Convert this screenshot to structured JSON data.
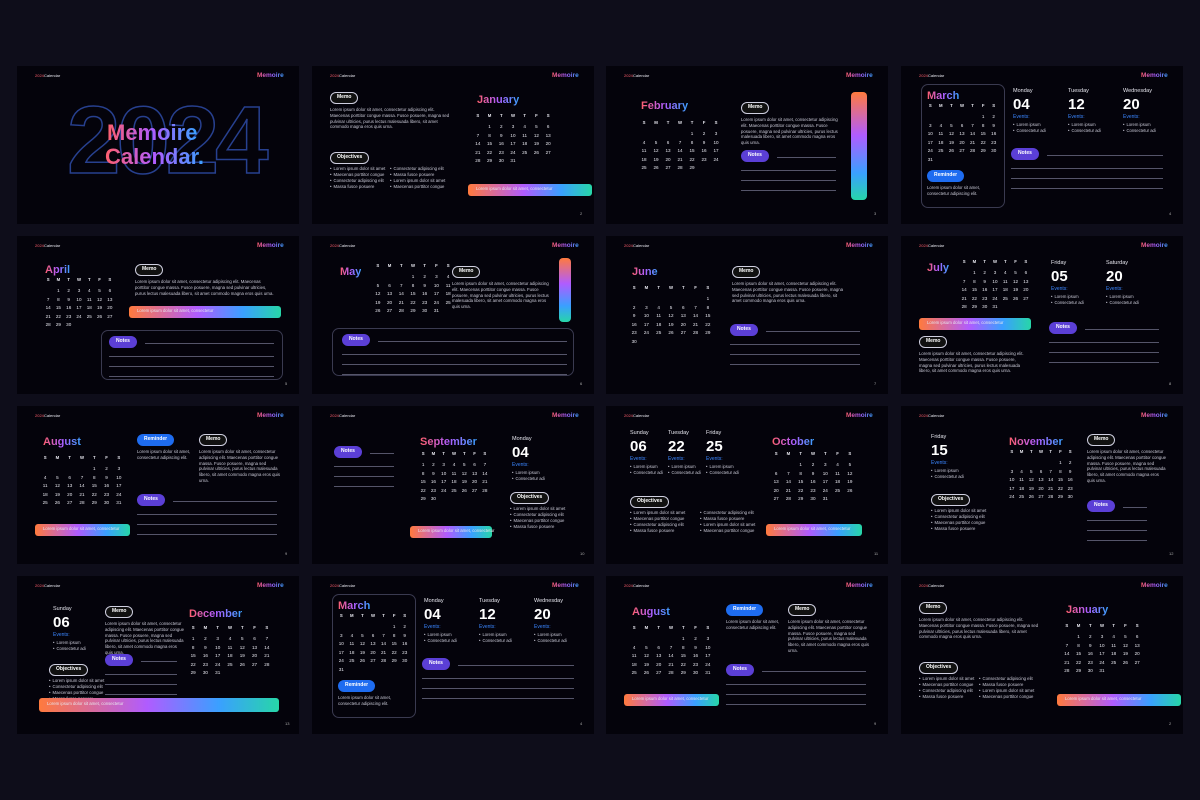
{
  "brand_year": "2024",
  "brand_word": "Calendar",
  "logo": "Memoire",
  "cover": {
    "year": "2024",
    "title1": "Memoire",
    "title2": "Calendar."
  },
  "weekdays": [
    "S",
    "M",
    "T",
    "W",
    "T",
    "F",
    "S"
  ],
  "labels": {
    "memo": "Memo",
    "notes": "Notes",
    "objectives": "Objectives",
    "reminder": "Reminder",
    "events": "Events:"
  },
  "memo_text": "Lorem ipsum dolor sit amet, consectetur adipiscing elit. Maecenas porttitor congue massa. Fusce posuere, magna sed pulvinar ultricies, purus lectus malesuada libero, sit amet commodo magna eros quis urna.",
  "banner_text": "Lorem ipsum dolor sit amet, consectetur",
  "reminder_text": "Lorem ipsum dolor sit amet, consectetur adipiscing elit.",
  "event_items": [
    "Lorem ipsum",
    "Consectetur adi"
  ],
  "objective_items": [
    "Lorem ipsum dolor sit amet",
    "Consectetur adipiscing elit",
    "Maecenas porttitor congue",
    "Massa fusce posuere"
  ],
  "slides": [
    {
      "month": "January",
      "page": "2",
      "days": [
        null,
        1,
        2,
        3,
        4,
        5,
        6,
        7,
        8,
        9,
        10,
        11,
        12,
        13,
        14,
        15,
        16,
        17,
        18,
        19,
        20,
        21,
        22,
        23,
        24,
        25,
        26,
        27,
        28,
        29,
        30,
        31
      ]
    },
    {
      "month": "February",
      "page": "3",
      "days": [
        null,
        null,
        null,
        null,
        1,
        2,
        3,
        4,
        5,
        6,
        7,
        8,
        9,
        10,
        11,
        12,
        13,
        14,
        15,
        16,
        17,
        18,
        19,
        20,
        21,
        22,
        23,
        24,
        25,
        26,
        27,
        28,
        29
      ]
    },
    {
      "month": "March",
      "page": "4",
      "days": [
        null,
        null,
        null,
        null,
        null,
        1,
        2,
        3,
        4,
        5,
        6,
        7,
        8,
        9,
        10,
        11,
        12,
        13,
        14,
        15,
        16,
        17,
        18,
        19,
        20,
        21,
        22,
        23,
        24,
        25,
        26,
        27,
        28,
        29,
        30,
        31
      ],
      "dates": [
        {
          "weekday": "Monday",
          "day": "04"
        },
        {
          "weekday": "Tuesday",
          "day": "12"
        },
        {
          "weekday": "Wednesday",
          "day": "20"
        }
      ]
    },
    {
      "month": "April",
      "page": "5",
      "days": [
        null,
        1,
        2,
        3,
        4,
        5,
        6,
        7,
        8,
        9,
        10,
        11,
        12,
        13,
        14,
        15,
        16,
        17,
        18,
        19,
        20,
        21,
        22,
        23,
        24,
        25,
        26,
        27,
        28,
        29,
        30
      ]
    },
    {
      "month": "May",
      "page": "6",
      "days": [
        null,
        null,
        null,
        1,
        2,
        3,
        4,
        5,
        6,
        7,
        8,
        9,
        10,
        11,
        12,
        13,
        14,
        15,
        16,
        17,
        18,
        19,
        20,
        21,
        22,
        23,
        24,
        25,
        26,
        27,
        28,
        29,
        30,
        31
      ]
    },
    {
      "month": "June",
      "page": "7",
      "days": [
        null,
        null,
        null,
        null,
        null,
        null,
        1,
        2,
        3,
        4,
        5,
        6,
        7,
        8,
        9,
        10,
        11,
        12,
        13,
        14,
        15,
        16,
        17,
        18,
        19,
        20,
        21,
        22,
        23,
        24,
        25,
        26,
        27,
        28,
        29,
        30
      ]
    },
    {
      "month": "July",
      "page": "8",
      "days": [
        null,
        1,
        2,
        3,
        4,
        5,
        6,
        7,
        8,
        9,
        10,
        11,
        12,
        13,
        14,
        15,
        16,
        17,
        18,
        19,
        20,
        21,
        22,
        23,
        24,
        25,
        26,
        27,
        28,
        29,
        30,
        31
      ],
      "dates": [
        {
          "weekday": "Friday",
          "day": "05"
        },
        {
          "weekday": "Saturday",
          "day": "20"
        }
      ]
    },
    {
      "month": "August",
      "page": "9",
      "days": [
        null,
        null,
        null,
        null,
        1,
        2,
        3,
        4,
        5,
        6,
        7,
        8,
        9,
        10,
        11,
        12,
        13,
        14,
        15,
        16,
        17,
        18,
        19,
        20,
        21,
        22,
        23,
        24,
        25,
        26,
        27,
        28,
        29,
        30,
        31
      ]
    },
    {
      "month": "September",
      "page": "10",
      "days": [
        1,
        2,
        3,
        4,
        5,
        6,
        7,
        8,
        9,
        10,
        11,
        12,
        13,
        14,
        15,
        16,
        17,
        18,
        19,
        20,
        21,
        22,
        23,
        24,
        25,
        26,
        27,
        28,
        29,
        30
      ],
      "dates": [
        {
          "weekday": "Monday",
          "day": "04"
        }
      ]
    },
    {
      "month": "October",
      "page": "11",
      "days": [
        null,
        null,
        1,
        2,
        3,
        4,
        5,
        6,
        7,
        8,
        9,
        10,
        11,
        12,
        13,
        14,
        15,
        16,
        17,
        18,
        19,
        20,
        21,
        22,
        23,
        24,
        25,
        26,
        27,
        28,
        29,
        30,
        31
      ],
      "dates": [
        {
          "weekday": "Sunday",
          "day": "06"
        },
        {
          "weekday": "Tuesday",
          "day": "22"
        },
        {
          "weekday": "Friday",
          "day": "25"
        }
      ]
    },
    {
      "month": "November",
      "page": "12",
      "days": [
        null,
        null,
        null,
        null,
        null,
        1,
        2,
        3,
        4,
        5,
        6,
        7,
        8,
        9,
        10,
        11,
        12,
        13,
        14,
        15,
        16,
        17,
        18,
        19,
        20,
        21,
        22,
        23,
        24,
        25,
        26,
        27,
        28,
        29,
        30
      ],
      "dates": [
        {
          "weekday": "Friday",
          "day": "15"
        }
      ]
    },
    {
      "month": "December",
      "page": "13",
      "days": [
        1,
        2,
        3,
        4,
        5,
        6,
        7,
        8,
        9,
        10,
        11,
        12,
        13,
        14,
        15,
        16,
        17,
        18,
        19,
        20,
        21,
        22,
        23,
        24,
        25,
        26,
        27,
        28,
        29,
        30,
        31
      ],
      "dates": [
        {
          "weekday": "Sunday",
          "day": "06"
        }
      ]
    },
    {
      "month": "March",
      "page": "4",
      "days": [
        null,
        null,
        null,
        null,
        null,
        1,
        2,
        3,
        4,
        5,
        6,
        7,
        8,
        9,
        10,
        11,
        12,
        13,
        14,
        15,
        16,
        17,
        18,
        19,
        20,
        21,
        22,
        23,
        24,
        25,
        26,
        27,
        28,
        29,
        30,
        31
      ],
      "dates": [
        {
          "weekday": "Monday",
          "day": "04"
        },
        {
          "weekday": "Tuesday",
          "day": "12"
        },
        {
          "weekday": "Wednesday",
          "day": "20"
        }
      ]
    },
    {
      "month": "August",
      "page": "9",
      "days": [
        null,
        null,
        null,
        null,
        1,
        2,
        3,
        4,
        5,
        6,
        7,
        8,
        9,
        10,
        11,
        12,
        13,
        14,
        15,
        16,
        17,
        18,
        19,
        20,
        21,
        22,
        23,
        24,
        25,
        26,
        27,
        28,
        29,
        30,
        31
      ]
    },
    {
      "month": "January",
      "page": "2",
      "days": [
        null,
        1,
        2,
        3,
        4,
        5,
        6,
        7,
        8,
        9,
        10,
        11,
        12,
        13,
        14,
        15,
        16,
        17,
        18,
        19,
        20,
        21,
        22,
        23,
        24,
        25,
        26,
        27,
        28,
        29,
        30,
        31
      ]
    }
  ]
}
